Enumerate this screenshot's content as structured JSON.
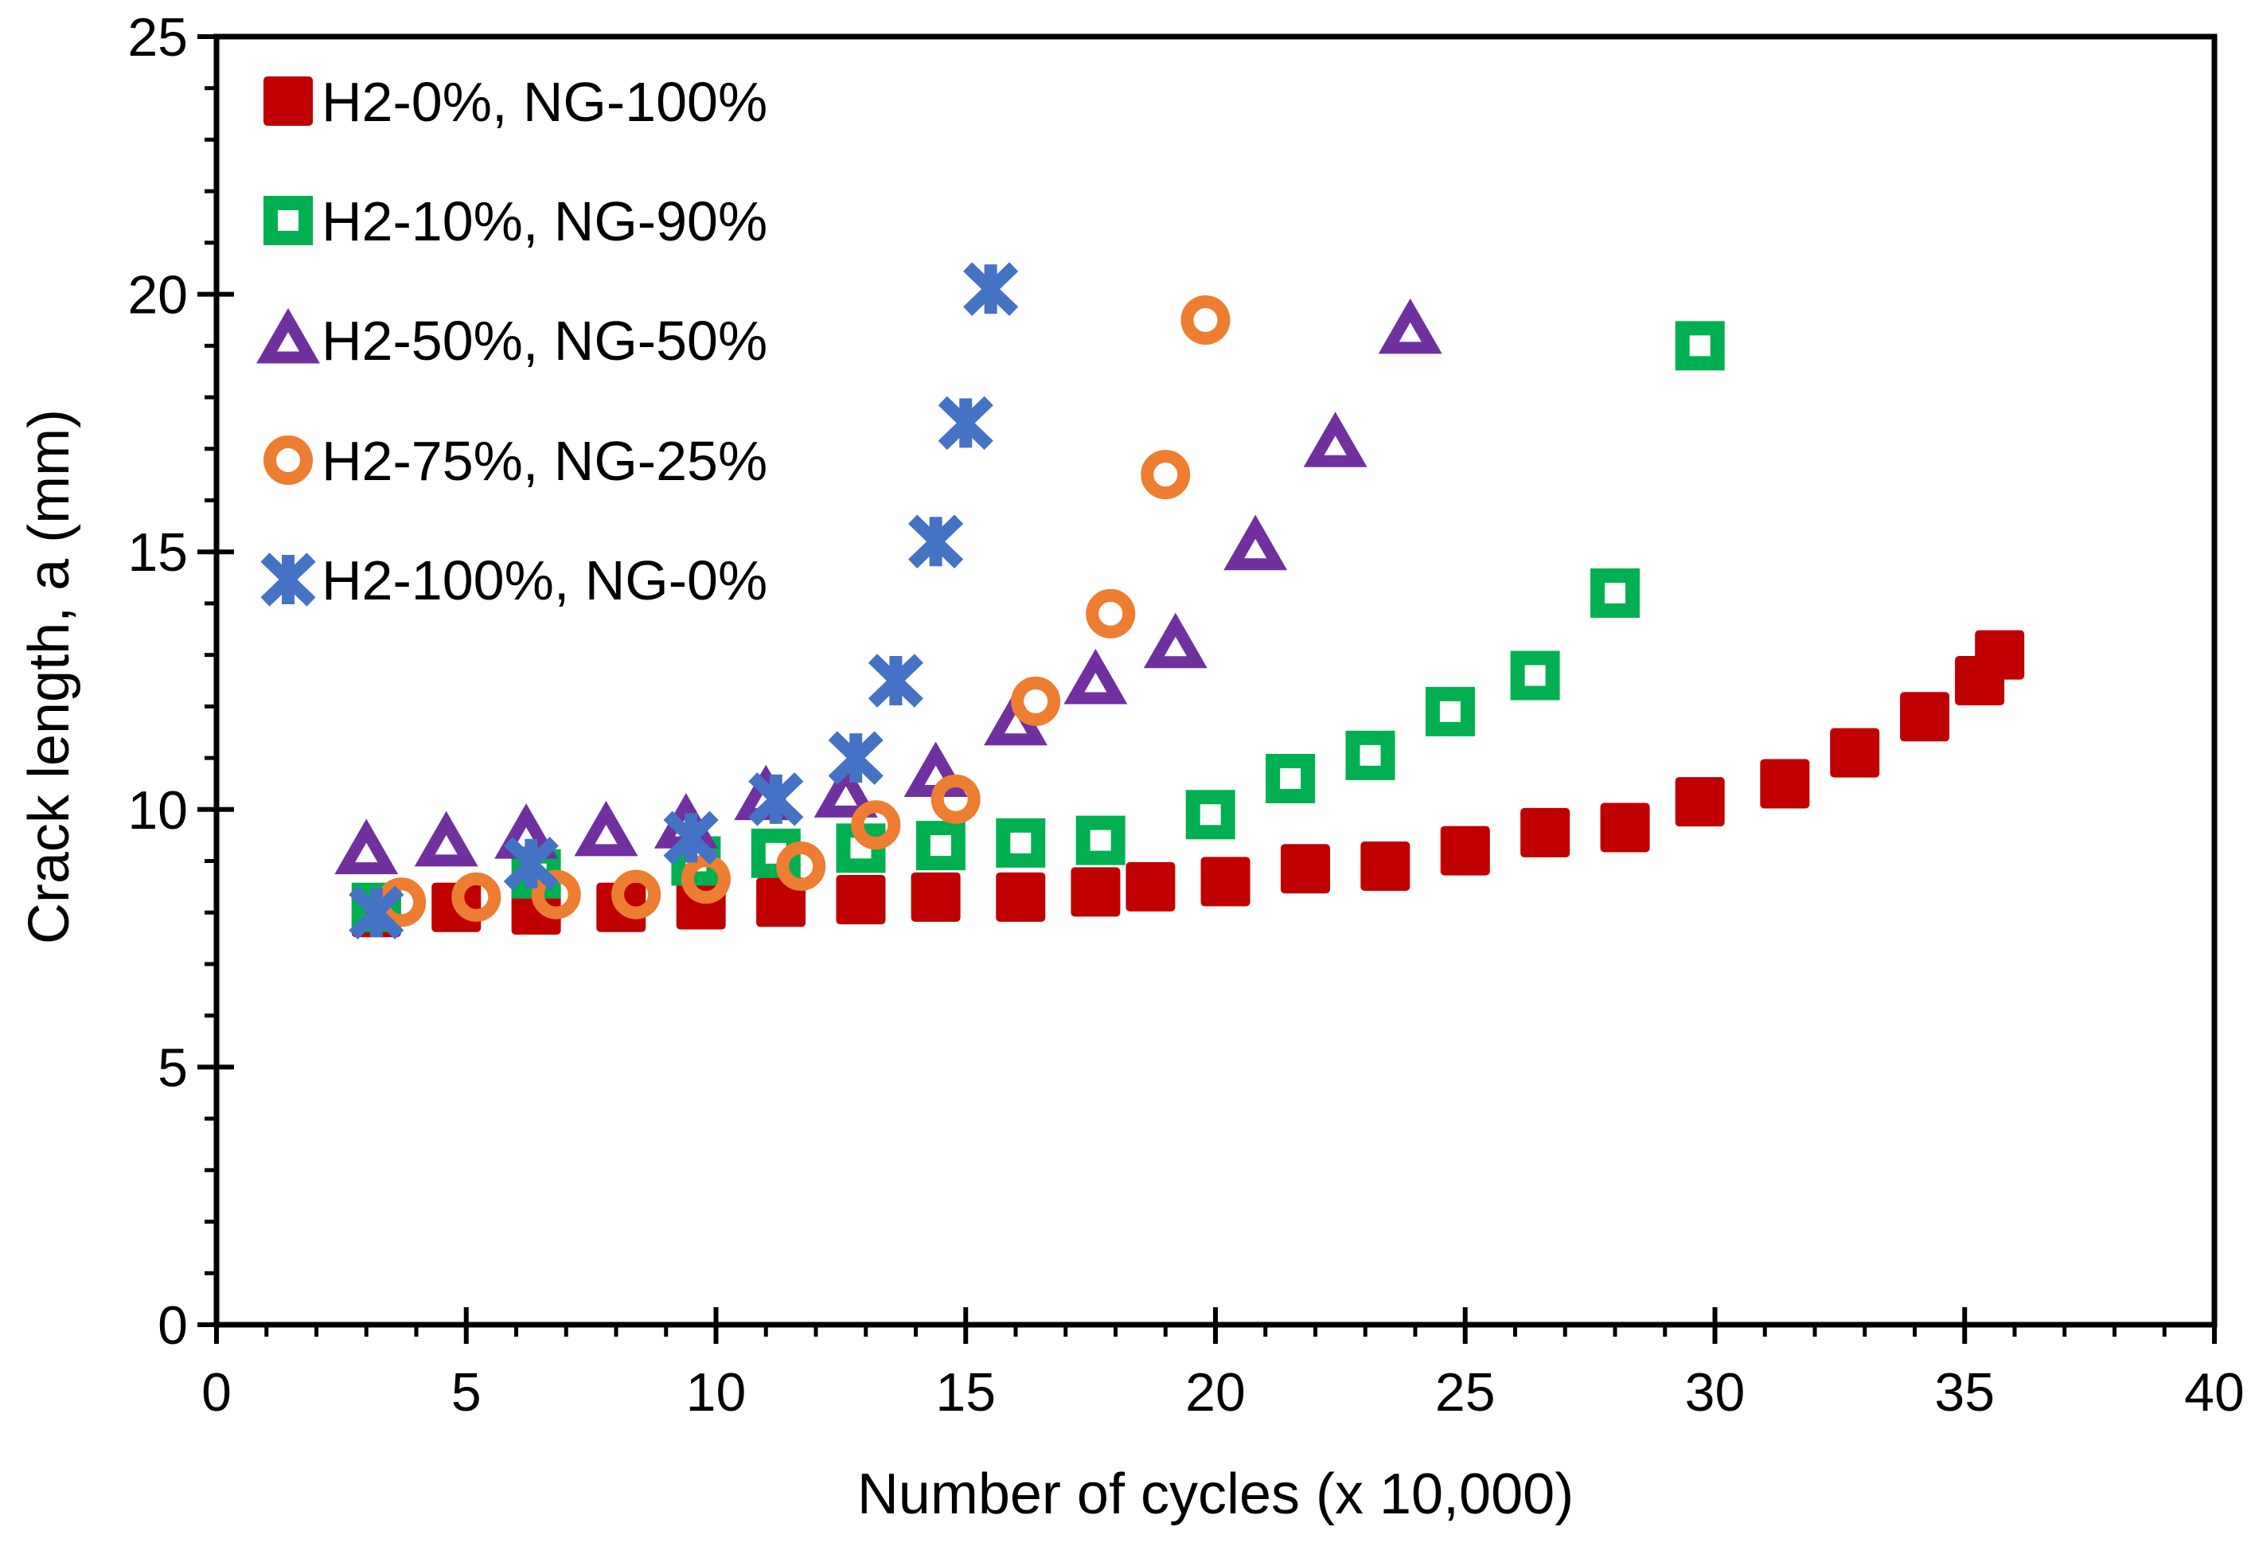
{
  "chart_data": {
    "type": "scatter",
    "title": "",
    "xlabel": "Number of cycles  (x 10,000)",
    "ylabel": "Crack length, a (mm)",
    "xlim": [
      0,
      40
    ],
    "ylim": [
      0,
      25
    ],
    "x_major_ticks": [
      0,
      5,
      10,
      15,
      20,
      25,
      30,
      35,
      40
    ],
    "y_major_ticks": [
      0,
      5,
      10,
      15,
      20,
      25
    ],
    "minor_tick_step": 1,
    "grid": false,
    "legend_position": "top-left-inside",
    "series": [
      {
        "name": "H2-0%, NG-100%",
        "marker": "filled-square",
        "color": "#C00000",
        "points": [
          [
            3.2,
            8.0
          ],
          [
            4.8,
            8.1
          ],
          [
            6.4,
            8.05
          ],
          [
            8.1,
            8.1
          ],
          [
            9.7,
            8.15
          ],
          [
            11.3,
            8.2
          ],
          [
            12.9,
            8.25
          ],
          [
            14.4,
            8.3
          ],
          [
            16.1,
            8.3
          ],
          [
            17.6,
            8.4
          ],
          [
            18.7,
            8.5
          ],
          [
            20.2,
            8.6
          ],
          [
            21.8,
            8.85
          ],
          [
            23.4,
            8.9
          ],
          [
            25.0,
            9.2
          ],
          [
            26.6,
            9.55
          ],
          [
            28.2,
            9.65
          ],
          [
            29.7,
            10.15
          ],
          [
            31.4,
            10.5
          ],
          [
            32.8,
            11.1
          ],
          [
            34.2,
            11.8
          ],
          [
            35.3,
            12.5
          ],
          [
            35.7,
            13.0
          ]
        ]
      },
      {
        "name": "H2-10%, NG-90%",
        "marker": "open-square",
        "color": "#00B050",
        "points": [
          [
            3.2,
            8.1
          ],
          [
            6.4,
            8.75
          ],
          [
            9.6,
            9.0
          ],
          [
            11.2,
            9.15
          ],
          [
            12.9,
            9.25
          ],
          [
            14.5,
            9.3
          ],
          [
            16.1,
            9.35
          ],
          [
            17.7,
            9.4
          ],
          [
            19.9,
            9.9
          ],
          [
            21.5,
            10.6
          ],
          [
            23.1,
            11.05
          ],
          [
            24.7,
            11.9
          ],
          [
            26.4,
            12.6
          ],
          [
            28.0,
            14.2
          ],
          [
            29.7,
            19.0
          ]
        ]
      },
      {
        "name": "H2-50%, NG-50%",
        "marker": "open-triangle",
        "color": "#7030A0",
        "points": [
          [
            3.0,
            9.2
          ],
          [
            4.6,
            9.35
          ],
          [
            6.2,
            9.5
          ],
          [
            7.8,
            9.55
          ],
          [
            9.4,
            9.7
          ],
          [
            11.0,
            10.25
          ],
          [
            12.6,
            10.3
          ],
          [
            14.4,
            10.7
          ],
          [
            16.0,
            11.7
          ],
          [
            17.6,
            12.5
          ],
          [
            19.2,
            13.2
          ],
          [
            20.8,
            15.1
          ],
          [
            22.4,
            17.1
          ],
          [
            23.9,
            19.3
          ]
        ]
      },
      {
        "name": "H2-75%, NG-25%",
        "marker": "open-circle",
        "color": "#ED7D31",
        "points": [
          [
            3.7,
            8.2
          ],
          [
            5.2,
            8.3
          ],
          [
            6.8,
            8.35
          ],
          [
            8.4,
            8.35
          ],
          [
            9.8,
            8.65
          ],
          [
            11.7,
            8.9
          ],
          [
            13.2,
            9.7
          ],
          [
            14.8,
            10.2
          ],
          [
            16.4,
            12.1
          ],
          [
            17.9,
            13.8
          ],
          [
            19.0,
            16.5
          ],
          [
            19.8,
            19.5
          ]
        ]
      },
      {
        "name": "H2-100%, NG-0%",
        "marker": "asterisk",
        "color": "#4472C4",
        "points": [
          [
            3.2,
            8.0
          ],
          [
            6.3,
            8.95
          ],
          [
            9.5,
            9.45
          ],
          [
            11.2,
            10.2
          ],
          [
            12.8,
            11.0
          ],
          [
            13.6,
            12.5
          ],
          [
            14.4,
            15.2
          ],
          [
            15.0,
            17.5
          ],
          [
            15.5,
            20.1
          ]
        ]
      }
    ]
  },
  "colors": {
    "axis": "#000000",
    "background": "#FFFFFF"
  }
}
